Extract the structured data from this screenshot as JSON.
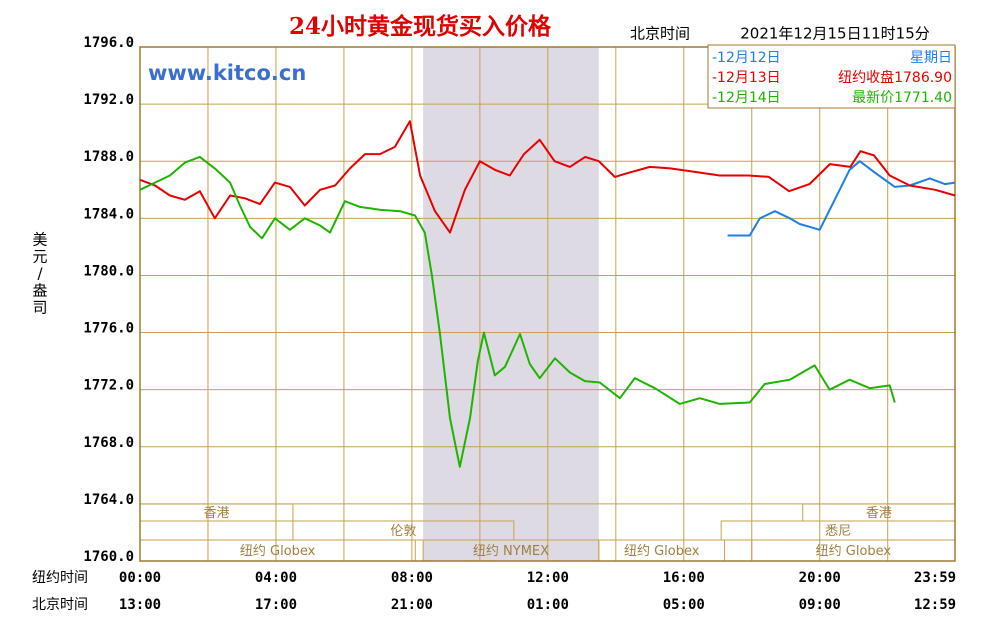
{
  "chart_data": {
    "type": "line",
    "title": "24小时黄金现货买入价格",
    "time_label": "北京时间",
    "timestamp": "2021年12月15日11时15分",
    "watermark": "www.kitco.cn",
    "ylabel": "美元/盎司",
    "ylim": [
      1760,
      1796
    ],
    "yticks": [
      {
        "value": 1796,
        "label": "1796.0"
      },
      {
        "value": 1792,
        "label": "1792.0"
      },
      {
        "value": 1788,
        "label": "1788.0"
      },
      {
        "value": 1784,
        "label": "1784.0"
      },
      {
        "value": 1780,
        "label": "1780.0"
      },
      {
        "value": 1776,
        "label": "1776.0"
      },
      {
        "value": 1772,
        "label": "1772.0"
      },
      {
        "value": 1768,
        "label": "1768.0"
      },
      {
        "value": 1764,
        "label": "1764.0"
      },
      {
        "value": 1760,
        "label": "1760.0"
      }
    ],
    "xlim": [
      0,
      23.98
    ],
    "xgrid": [
      0,
      2,
      4,
      6,
      8,
      10,
      12,
      14,
      16,
      18,
      20,
      22,
      23.98
    ],
    "xaxis_name": "纽约时间",
    "xticks": [
      {
        "value": 0,
        "label": "00:00"
      },
      {
        "value": 4,
        "label": "04:00"
      },
      {
        "value": 8,
        "label": "08:00"
      },
      {
        "value": 12,
        "label": "12:00"
      },
      {
        "value": 16,
        "label": "16:00"
      },
      {
        "value": 20,
        "label": "20:00"
      },
      {
        "value": 23.98,
        "label": "23:59"
      }
    ],
    "xaxis2_name": "北京时间",
    "xticks2": [
      {
        "value": 0,
        "label": "13:00"
      },
      {
        "value": 4,
        "label": "17:00"
      },
      {
        "value": 8,
        "label": "21:00"
      },
      {
        "value": 12,
        "label": "01:00"
      },
      {
        "value": 16,
        "label": "05:00"
      },
      {
        "value": 20,
        "label": "09:00"
      },
      {
        "value": 23.98,
        "label": "12:59"
      }
    ],
    "shaded": [
      8.33,
      13.5
    ],
    "sessions": [
      {
        "label": "香港",
        "start": 0,
        "end": 4.5,
        "row": 0
      },
      {
        "label": "香港",
        "start": 19.5,
        "end": 23.98,
        "row": 0
      },
      {
        "label": "伦敦",
        "start": 4.5,
        "end": 11,
        "row": 1
      },
      {
        "label": "悉尼",
        "start": 17.1,
        "end": 23.98,
        "row": 1
      },
      {
        "label": "纽约 Globex",
        "start": 0,
        "end": 8.1,
        "row": 2
      },
      {
        "label": "纽约 NYMEX",
        "start": 8.33,
        "end": 13.5,
        "row": 2
      },
      {
        "label": "纽约 Globex",
        "start": 13.5,
        "end": 17.2,
        "row": 2
      },
      {
        "label": "纽约 Globex",
        "start": 18,
        "end": 23.98,
        "row": 2
      }
    ],
    "series": [
      {
        "name": "-12月12日",
        "note": "星期日",
        "color": "#1e7fe6",
        "x": [
          17.29,
          17.94,
          18.24,
          18.68,
          19.12,
          19.41,
          20,
          20.44,
          20.88,
          21.18,
          21.62,
          22.21,
          22.65,
          23.24,
          23.68,
          23.98
        ],
        "values": [
          1782.8,
          1782.8,
          1784.0,
          1784.5,
          1784.0,
          1783.6,
          1783.2,
          1785.3,
          1787.4,
          1788.0,
          1787.2,
          1786.2,
          1786.3,
          1786.8,
          1786.4,
          1786.5
        ]
      },
      {
        "name": "-12月13日",
        "note": "纽约收盘1786.90",
        "color": "#e60000",
        "x": [
          0,
          0.44,
          0.88,
          1.32,
          1.76,
          2.2,
          2.65,
          3.09,
          3.53,
          3.97,
          4.41,
          4.85,
          5.3,
          5.74,
          6.18,
          6.62,
          7.06,
          7.5,
          7.94,
          8.24,
          8.68,
          9.12,
          9.56,
          10,
          10.44,
          10.88,
          11.3,
          11.76,
          12.2,
          12.65,
          13.1,
          13.5,
          13.97,
          14.4,
          15,
          15.6,
          16.2,
          17.06,
          17.9,
          18.5,
          19.1,
          19.7,
          20.3,
          20.9,
          21.2,
          21.6,
          22.06,
          22.65,
          23.4,
          23.98
        ],
        "values": [
          1786.7,
          1786.3,
          1785.6,
          1785.3,
          1785.9,
          1784.0,
          1785.6,
          1785.4,
          1785.0,
          1786.5,
          1786.2,
          1784.9,
          1786.0,
          1786.3,
          1787.5,
          1788.5,
          1788.5,
          1789.0,
          1790.8,
          1787.0,
          1784.5,
          1783.0,
          1786.0,
          1788.0,
          1787.4,
          1787.0,
          1788.5,
          1789.5,
          1788.0,
          1787.6,
          1788.3,
          1788.0,
          1786.9,
          1787.2,
          1787.6,
          1787.5,
          1787.3,
          1787.0,
          1787.0,
          1786.9,
          1785.9,
          1786.4,
          1787.8,
          1787.6,
          1788.7,
          1788.4,
          1787.0,
          1786.3,
          1786.0,
          1785.6
        ]
      },
      {
        "name": "-12月14日",
        "note": "最新价1771.40",
        "color": "#1eb400",
        "x": [
          0,
          0.44,
          0.88,
          1.32,
          1.76,
          2.2,
          2.65,
          2.94,
          3.24,
          3.59,
          3.97,
          4.41,
          4.85,
          5.3,
          5.59,
          6.03,
          6.47,
          7.06,
          7.65,
          8.09,
          8.38,
          8.59,
          8.82,
          9.12,
          9.41,
          9.71,
          9.94,
          10.12,
          10.44,
          10.74,
          11.18,
          11.47,
          11.76,
          12.21,
          12.65,
          13.09,
          13.53,
          14.12,
          14.56,
          15.15,
          15.88,
          16.47,
          17.06,
          17.94,
          18.38,
          19.12,
          19.85,
          20.29,
          20.88,
          21.47,
          22.06,
          22.21
        ],
        "values": [
          1786.0,
          1786.5,
          1787.0,
          1787.9,
          1788.3,
          1787.5,
          1786.5,
          1784.9,
          1783.4,
          1782.6,
          1784.0,
          1783.2,
          1784.0,
          1783.5,
          1783.0,
          1785.2,
          1784.8,
          1784.6,
          1784.5,
          1784.2,
          1783.0,
          1780.0,
          1776.0,
          1770.0,
          1766.6,
          1770.0,
          1774.0,
          1776.0,
          1773.0,
          1773.6,
          1775.9,
          1773.8,
          1772.8,
          1774.2,
          1773.2,
          1772.6,
          1772.5,
          1771.4,
          1772.8,
          1772.1,
          1771.0,
          1771.4,
          1771.0,
          1771.1,
          1772.4,
          1772.7,
          1773.7,
          1772.0,
          1772.7,
          1772.1,
          1772.3,
          1771.1
        ]
      }
    ]
  }
}
